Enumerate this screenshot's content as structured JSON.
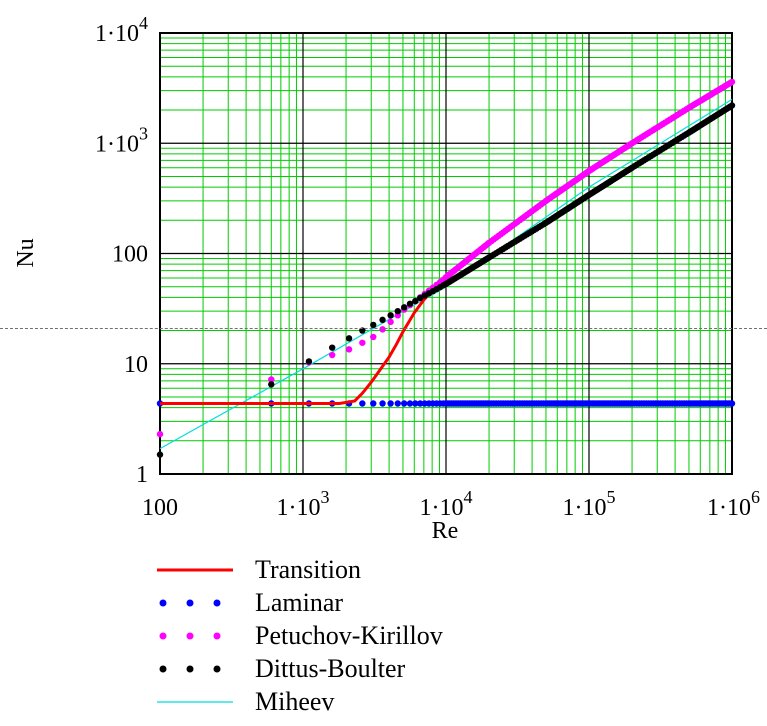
{
  "chart_data": {
    "type": "scatter",
    "xlabel": "Re",
    "ylabel": "Nu",
    "xscale": "log",
    "yscale": "log",
    "xlim": [
      100,
      1000000
    ],
    "ylim": [
      1,
      10000
    ],
    "grid": true,
    "legend_position": "bottom",
    "x_ticks": [
      {
        "value": 100,
        "base": "100",
        "exp": ""
      },
      {
        "value": 1000,
        "base": "1·10",
        "exp": "3"
      },
      {
        "value": 10000,
        "base": "1·10",
        "exp": "4"
      },
      {
        "value": 100000,
        "base": "1·10",
        "exp": "5"
      },
      {
        "value": 1000000,
        "base": "1·10",
        "exp": "6"
      }
    ],
    "y_ticks": [
      {
        "value": 1,
        "base": "1",
        "exp": ""
      },
      {
        "value": 10,
        "base": "10",
        "exp": ""
      },
      {
        "value": 100,
        "base": "100",
        "exp": ""
      },
      {
        "value": 1000,
        "base": "1·10",
        "exp": "3"
      },
      {
        "value": 10000,
        "base": "1·10",
        "exp": "4"
      }
    ],
    "series": [
      {
        "name": "Transition",
        "style": "line",
        "color": "#ff0000",
        "x": [
          100,
          500,
          1000,
          1800,
          2300,
          2600,
          3000,
          3500,
          4000,
          4500,
          5000,
          5500,
          6000,
          7000,
          8000,
          9000,
          10000
        ],
        "y": [
          4.36,
          4.36,
          4.36,
          4.36,
          4.6,
          5.4,
          6.8,
          9.0,
          11.5,
          15.0,
          19.5,
          24.0,
          29.0,
          38.0,
          46.0,
          53.0,
          58.0
        ]
      },
      {
        "name": "Laminar",
        "style": "dots",
        "color": "#0000ff",
        "x": [
          100,
          600,
          1100,
          1600,
          2100,
          2600,
          3100,
          3600,
          4100,
          4600,
          5100,
          5600,
          6100,
          6600,
          7100,
          7600,
          8100,
          8600,
          9100,
          9600,
          10000,
          20000,
          50000,
          100000,
          200000,
          500000,
          1000000
        ],
        "y": [
          4.36,
          4.36,
          4.36,
          4.36,
          4.36,
          4.36,
          4.36,
          4.36,
          4.36,
          4.36,
          4.36,
          4.36,
          4.36,
          4.36,
          4.36,
          4.36,
          4.36,
          4.36,
          4.36,
          4.36,
          4.36,
          4.36,
          4.36,
          4.36,
          4.36,
          4.36,
          4.36
        ]
      },
      {
        "name": "Petuchov-Kirillov",
        "style": "dots",
        "color": "#ff00ff",
        "x": [
          100,
          600,
          1100,
          1600,
          2100,
          2600,
          3100,
          3600,
          4100,
          4600,
          5100,
          5600,
          6100,
          6600,
          7100,
          7600,
          8100,
          8600,
          9100,
          9600,
          10000,
          20000,
          50000,
          100000,
          200000,
          500000,
          1000000
        ],
        "y": [
          2.3,
          7.2,
          10.3,
          12.0,
          13.5,
          15.5,
          17.5,
          20.5,
          24.0,
          27.5,
          31.0,
          34.0,
          37.0,
          40.0,
          43.0,
          46.0,
          49.0,
          52.0,
          55.0,
          58.0,
          61.0,
          125.0,
          300.0,
          560.0,
          1000.0,
          2100.0,
          3600.0
        ]
      },
      {
        "name": "Dittus-Boulter",
        "style": "dots",
        "color": "#000000",
        "x": [
          100,
          600,
          1100,
          1600,
          2100,
          2600,
          3100,
          3600,
          4100,
          4600,
          5100,
          5600,
          6100,
          6600,
          7100,
          7600,
          8100,
          8600,
          9100,
          9600,
          10000,
          20000,
          50000,
          100000,
          200000,
          500000,
          1000000
        ],
        "y": [
          1.5,
          6.5,
          10.5,
          14.0,
          17.0,
          20.0,
          22.5,
          25.0,
          27.5,
          30.0,
          32.5,
          35.0,
          37.0,
          39.5,
          41.5,
          43.5,
          45.5,
          47.5,
          49.5,
          51.5,
          53.0,
          92.0,
          190.0,
          340.0,
          600.0,
          1250.0,
          2200.0
        ]
      },
      {
        "name": "Miheev",
        "style": "line",
        "color": "#00dddd",
        "x": [
          100,
          1000,
          10000,
          100000,
          1000000
        ],
        "y": [
          1.7,
          9.0,
          50.0,
          400.0,
          2500.0
        ]
      }
    ]
  }
}
